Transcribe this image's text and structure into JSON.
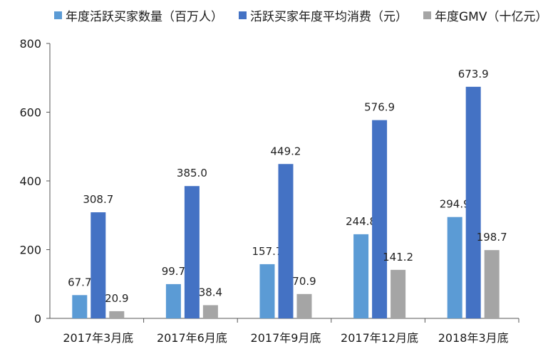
{
  "chart_data": {
    "type": "bar",
    "title": "",
    "xlabel": "",
    "ylabel": "",
    "ylim": [
      0,
      800
    ],
    "yticks": [
      "0",
      "200",
      "400",
      "600",
      "800"
    ],
    "categories": [
      "2017年3月底",
      "2017年6月底",
      "2017年9月底",
      "2017年12月底",
      "2018年3月底"
    ],
    "series": [
      {
        "name": "年度活跃买家数量（百万人）",
        "color": "#5b9bd5",
        "values": [
          67.7,
          99.7,
          157.7,
          244.8,
          294.9
        ],
        "labels": [
          "67.7",
          "99.7",
          "157.7",
          "244.8",
          "294.9"
        ]
      },
      {
        "name": "活跃买家年度平均消费（元）",
        "color": "#4472c4",
        "values": [
          308.7,
          385.0,
          449.2,
          576.9,
          673.9
        ],
        "labels": [
          "308.7",
          "385.0",
          "449.2",
          "576.9",
          "673.9"
        ]
      },
      {
        "name": "年度GMV（十亿元）",
        "color": "#a5a5a5",
        "values": [
          20.9,
          38.4,
          70.9,
          141.2,
          198.7
        ],
        "labels": [
          "20.9",
          "38.4",
          "70.9",
          "141.2",
          "198.7"
        ]
      }
    ],
    "grid": false,
    "legend_position": "top"
  }
}
